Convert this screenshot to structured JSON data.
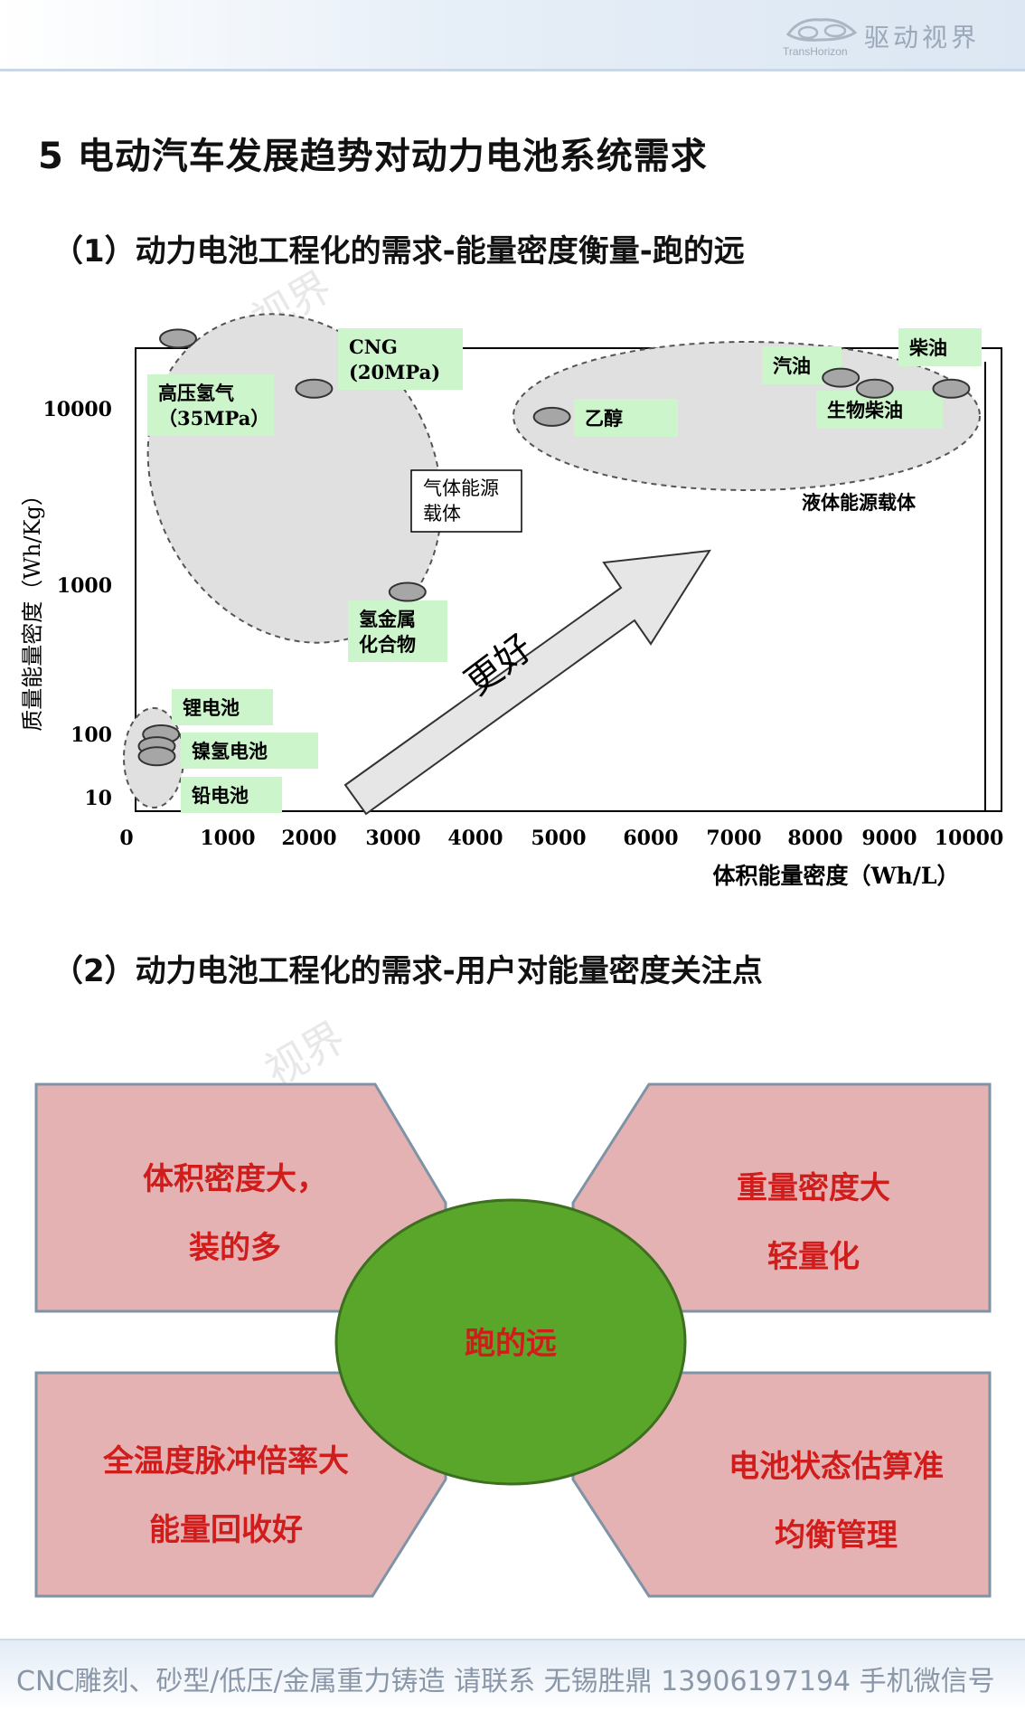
{
  "header": {
    "brand_cn": "驱动视界",
    "brand_en": "TransHorizon"
  },
  "title": "5 电动汽车发展趋势对动力电池系统需求",
  "section1": {
    "heading": "（1）动力电池工程化的需求-能量密度衡量-跑的远"
  },
  "section2": {
    "heading": "（2）动力电池工程化的需求-用户对能量密度关注点"
  },
  "watermark": "视界",
  "chart_data": {
    "type": "scatter",
    "xlabel": "体积能量密度（Wh/L）",
    "ylabel": "质量能量密度（Wh/Kg）",
    "x_ticks": [
      "0",
      "1000",
      "2000",
      "3000",
      "4000",
      "5000",
      "6000",
      "7000",
      "8000",
      "9000",
      "10000"
    ],
    "y_ticks": [
      "10",
      "100",
      "1000",
      "10000"
    ],
    "xlim": [
      0,
      10000
    ],
    "y_scale": "log",
    "points": [
      {
        "label": "高压氢气（35MPa）",
        "x": 500,
        "y": 25000
      },
      {
        "label": "CNG (20MPa)",
        "x": 2100,
        "y": 13000
      },
      {
        "label": "氢金属化合物",
        "x": 3200,
        "y": 900
      },
      {
        "label": "乙醇",
        "x": 4900,
        "y": 9000
      },
      {
        "label": "汽油",
        "x": 8300,
        "y": 15000
      },
      {
        "label": "生物柴油",
        "x": 8700,
        "y": 13000
      },
      {
        "label": "柴油",
        "x": 9600,
        "y": 13000
      },
      {
        "label": "锂电池",
        "x": 300,
        "y": 100
      },
      {
        "label": "镍氢电池",
        "x": 250,
        "y": 65
      },
      {
        "label": "铅电池",
        "x": 250,
        "y": 45
      }
    ],
    "point_labels": [
      {
        "lines": [
          "高压氢气",
          "（35MPa）"
        ]
      },
      {
        "lines": [
          "CNG",
          "(20MPa)"
        ]
      },
      {
        "lines": [
          "氢金属",
          "化合物"
        ]
      },
      {
        "lines": [
          "乙醇"
        ]
      },
      {
        "lines": [
          "汽油"
        ]
      },
      {
        "lines": [
          "生物柴油"
        ]
      },
      {
        "lines": [
          "柴油"
        ]
      },
      {
        "lines": [
          "锂电池"
        ]
      },
      {
        "lines": [
          "镍氢电池"
        ]
      },
      {
        "lines": [
          "铅电池"
        ]
      }
    ],
    "group_labels": {
      "gas": [
        "气体能源",
        "载体"
      ],
      "liquid": "液体能源载体"
    },
    "arrow_label": "更好",
    "colors": {
      "label_bg": "#ccf5cc",
      "ellipse_fill": "#e0e0e0",
      "marker_fill": "#a6a6a6",
      "arrow_fill": "#e6e6e6"
    }
  },
  "diagram": {
    "center": "跑的远",
    "top_left": [
      "体积密度大，",
      "装的多"
    ],
    "top_right": [
      "重量密度大",
      "轻量化"
    ],
    "bottom_left": [
      "全温度脉冲倍率大",
      "能量回收好"
    ],
    "bottom_right": [
      "电池状态估算准",
      "均衡管理"
    ],
    "colors": {
      "panel_fill": "#e4b2b2",
      "panel_border": "#7f93a6",
      "center_fill": "#5aa62a",
      "text": "#d11c1c"
    }
  },
  "footer": {
    "text": "CNC雕刻、砂型/低压/金属重力铸造 请联系 无锡胜鼎 13906197194 手机微信号"
  }
}
